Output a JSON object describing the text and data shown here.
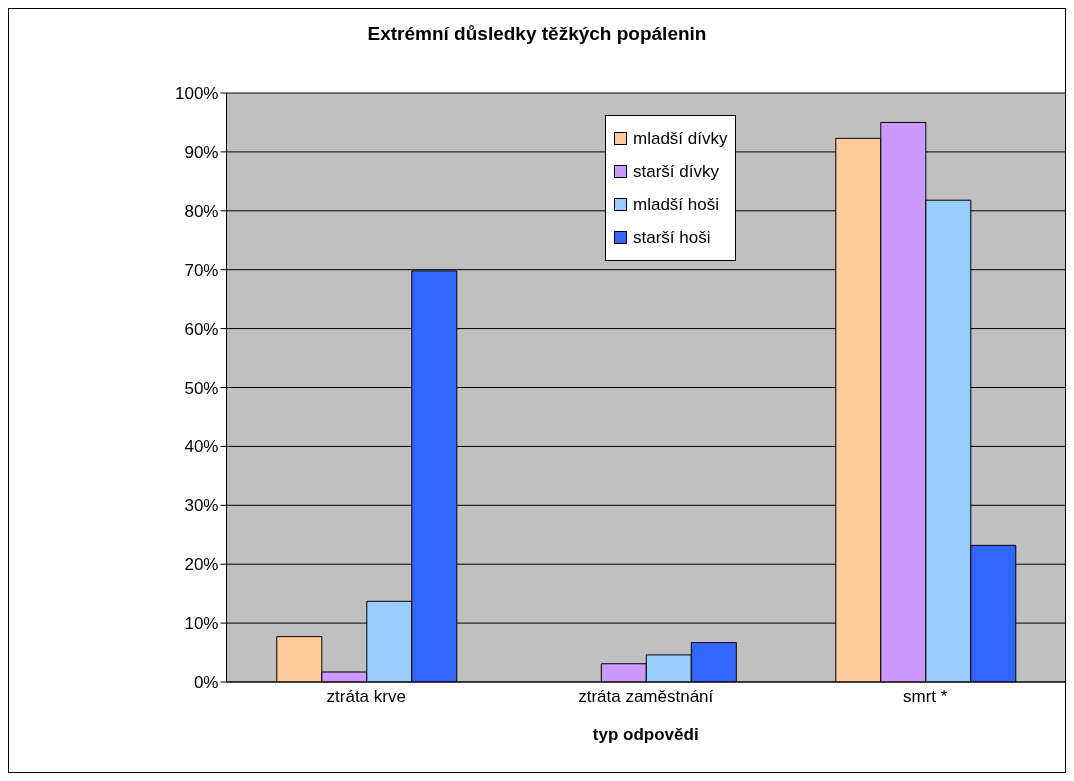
{
  "chart_data": {
    "type": "bar",
    "title": "Extrémní důsledky těžkých popálenin",
    "xlabel": "typ odpovědi",
    "categories": [
      "ztráta krve",
      "ztráta zaměstnání",
      "smrt *"
    ],
    "series": [
      {
        "name": "mladší dívky",
        "color": "#ffcc99",
        "values": [
          7.7,
          0,
          92.3
        ]
      },
      {
        "name": "starší dívky",
        "color": "#cc99ff",
        "values": [
          1.7,
          3.1,
          95.0
        ]
      },
      {
        "name": "mladší hoši",
        "color": "#99ccff",
        "values": [
          13.7,
          4.6,
          81.8
        ]
      },
      {
        "name": "starší hoši",
        "color": "#3366ff",
        "values": [
          69.8,
          6.7,
          23.2
        ]
      }
    ],
    "ylim": [
      0,
      100
    ],
    "yticks": [
      {
        "value": 0,
        "label": "0%"
      },
      {
        "value": 10,
        "label": "10%"
      },
      {
        "value": 20,
        "label": "20%"
      },
      {
        "value": 30,
        "label": "30%"
      },
      {
        "value": 40,
        "label": "40%"
      },
      {
        "value": 50,
        "label": "50%"
      },
      {
        "value": 60,
        "label": "60%"
      },
      {
        "value": 70,
        "label": "70%"
      },
      {
        "value": 80,
        "label": "80%"
      },
      {
        "value": 90,
        "label": "90%"
      },
      {
        "value": 100,
        "label": "100%"
      }
    ],
    "grid": "y",
    "legend": "top right"
  }
}
